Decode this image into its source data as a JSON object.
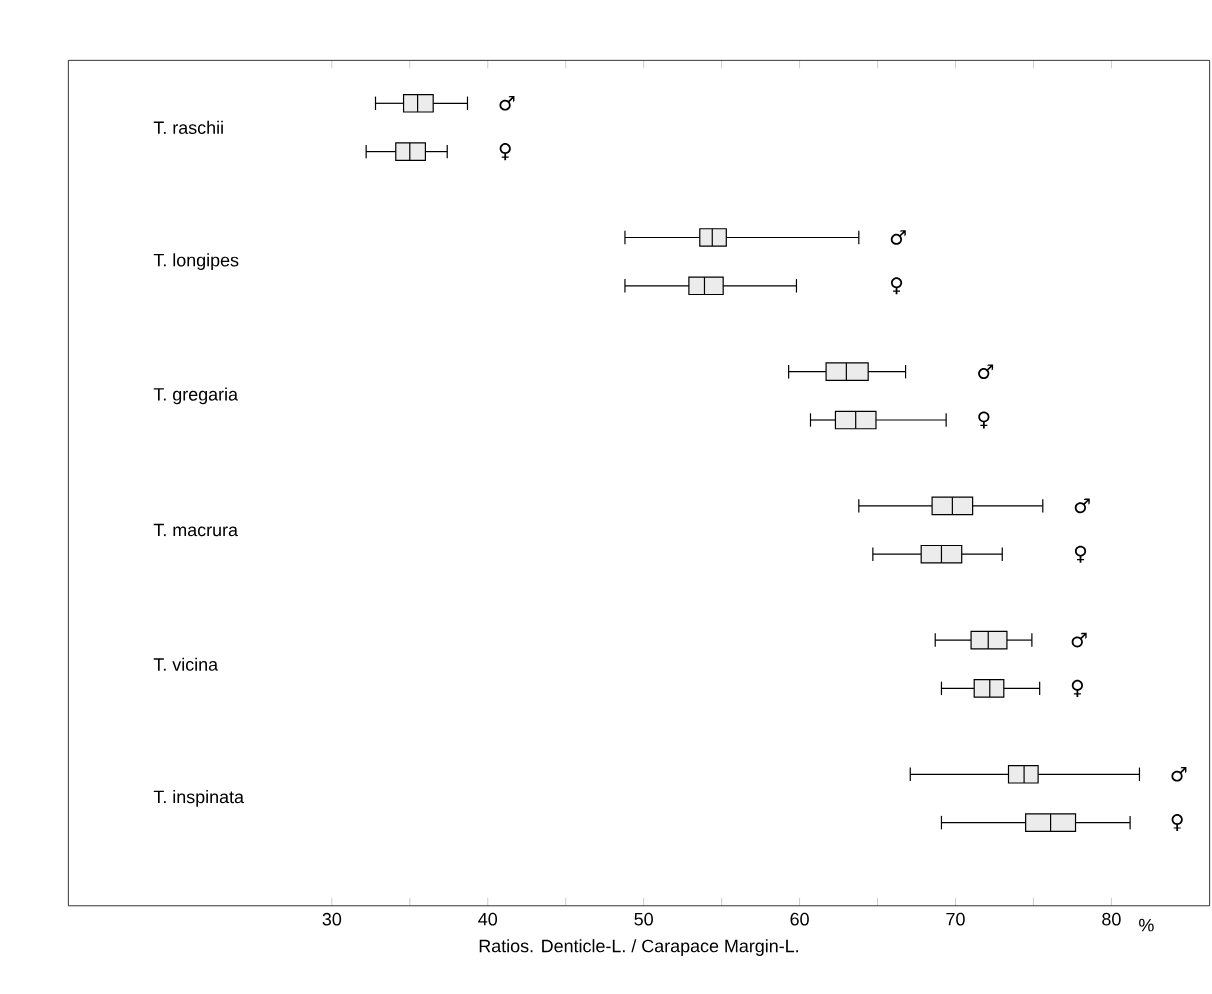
{
  "chart_data": {
    "type": "box",
    "orientation": "horizontal",
    "xlabel": "Ratios. Denticle-L. / Carapace Margin-L.",
    "annotations": [
      "%"
    ],
    "categories": [
      "T. raschii",
      "T. longipes",
      "T. gregaria",
      "T. macrura",
      "T. vicina",
      "T. inspinata"
    ],
    "xlim": [
      13.1,
      86.3
    ],
    "xticks": [
      30,
      {
        "value": 35,
        "label": null
      },
      40,
      {
        "value": 45,
        "label": null
      },
      50,
      {
        "value": 55,
        "label": null
      },
      60,
      {
        "value": 65,
        "label": null
      },
      70,
      {
        "value": 75,
        "label": null
      },
      80
    ],
    "series": [
      {
        "name": "♂",
        "color": "#000000",
        "boxes": [
          {
            "low": 32.8,
            "q1": 34.6,
            "median": 35.5,
            "q3": 36.5,
            "high": 38.7
          },
          {
            "low": 48.8,
            "q1": 53.6,
            "median": 54.4,
            "q3": 55.3,
            "high": 63.8
          },
          {
            "low": 59.3,
            "q1": 61.7,
            "median": 63.0,
            "q3": 64.4,
            "high": 66.8
          },
          {
            "low": 63.8,
            "q1": 68.5,
            "median": 69.8,
            "q3": 71.1,
            "high": 75.6
          },
          {
            "low": 68.7,
            "q1": 71.0,
            "median": 72.1,
            "q3": 73.3,
            "high": 74.9
          },
          {
            "low": 67.1,
            "q1": 73.4,
            "median": 74.4,
            "q3": 75.3,
            "high": 81.8
          }
        ]
      },
      {
        "name": "♀",
        "color": "#000000",
        "boxes": [
          {
            "low": 32.2,
            "q1": 34.1,
            "median": 35.0,
            "q3": 36.0,
            "high": 37.4
          },
          {
            "low": 48.8,
            "q1": 52.9,
            "median": 53.9,
            "q3": 55.1,
            "high": 59.8
          },
          {
            "low": 60.7,
            "q1": 62.3,
            "median": 63.6,
            "q3": 64.9,
            "high": 69.4
          },
          {
            "low": 64.7,
            "q1": 67.8,
            "median": 69.1,
            "q3": 70.4,
            "high": 73.0
          },
          {
            "low": 69.1,
            "q1": 71.2,
            "median": 72.2,
            "q3": 73.1,
            "high": 75.4
          },
          {
            "low": 69.1,
            "q1": 74.5,
            "median": 76.1,
            "q3": 77.7,
            "high": 81.2
          }
        ]
      }
    ]
  }
}
